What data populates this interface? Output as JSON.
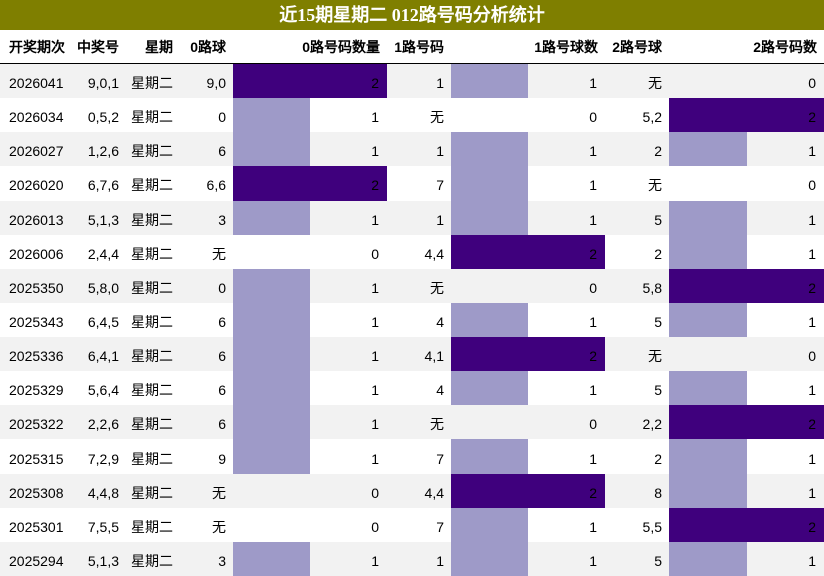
{
  "title": "近15期星期二 012路号码分析统计",
  "table": {
    "headers": [
      "开奖期次",
      "中奖号",
      "星期",
      "0路球",
      "0路号码数量",
      "1路号码",
      "1路号球数",
      "2路号球",
      "2路号码数"
    ],
    "bar_color_full": "#3f007d",
    "bar_color_partial": "#9e9ac8",
    "rows": [
      [
        "2026041",
        "9,0,1",
        "星期二",
        "9,0",
        2,
        "1",
        1,
        "无",
        0
      ],
      [
        "2026034",
        "0,5,2",
        "星期二",
        "0",
        1,
        "无",
        0,
        "5,2",
        2
      ],
      [
        "2026027",
        "1,2,6",
        "星期二",
        "6",
        1,
        "1",
        1,
        "2",
        1
      ],
      [
        "2026020",
        "6,7,6",
        "星期二",
        "6,6",
        2,
        "7",
        1,
        "无",
        0
      ],
      [
        "2026013",
        "5,1,3",
        "星期二",
        "3",
        1,
        "1",
        1,
        "5",
        1
      ],
      [
        "2026006",
        "2,4,4",
        "星期二",
        "无",
        0,
        "4,4",
        2,
        "2",
        1
      ],
      [
        "2025350",
        "5,8,0",
        "星期二",
        "0",
        1,
        "无",
        0,
        "5,8",
        2
      ],
      [
        "2025343",
        "6,4,5",
        "星期二",
        "6",
        1,
        "4",
        1,
        "5",
        1
      ],
      [
        "2025336",
        "6,4,1",
        "星期二",
        "6",
        1,
        "4,1",
        2,
        "无",
        0
      ],
      [
        "2025329",
        "5,6,4",
        "星期二",
        "6",
        1,
        "4",
        1,
        "5",
        1
      ],
      [
        "2025322",
        "2,2,6",
        "星期二",
        "6",
        1,
        "无",
        0,
        "2,2",
        2
      ],
      [
        "2025315",
        "7,2,9",
        "星期二",
        "9",
        1,
        "7",
        1,
        "2",
        1
      ],
      [
        "2025308",
        "4,4,8",
        "星期二",
        "无",
        0,
        "4,4",
        2,
        "8",
        1
      ],
      [
        "2025301",
        "7,5,5",
        "星期二",
        "无",
        0,
        "7",
        1,
        "5,5",
        2
      ],
      [
        "2025294",
        "5,1,3",
        "星期二",
        "3",
        1,
        "1",
        1,
        "5",
        1
      ]
    ]
  }
}
